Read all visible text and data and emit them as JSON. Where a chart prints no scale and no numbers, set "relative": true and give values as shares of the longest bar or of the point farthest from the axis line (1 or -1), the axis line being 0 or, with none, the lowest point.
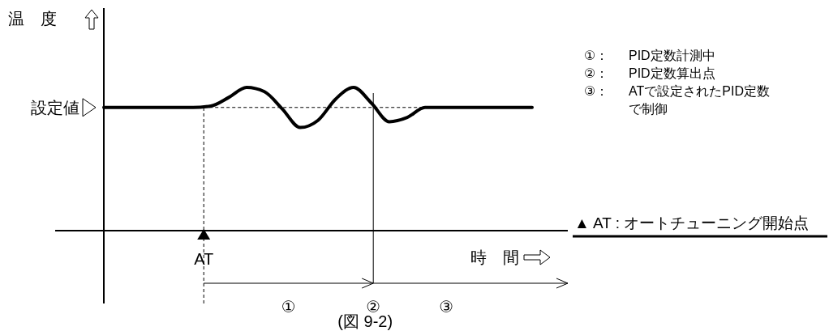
{
  "chart_data": {
    "type": "line",
    "relative": true,
    "ylabel": "温　度",
    "xlabel": "時　間",
    "categories": [
      null,
      null,
      null,
      null,
      null,
      null,
      null,
      null,
      null,
      null,
      null,
      null,
      null,
      null,
      null,
      null,
      null,
      null,
      null,
      null,
      null,
      null,
      null,
      null,
      null
    ],
    "series": [
      {
        "color": "#000000",
        "values": [
          0.86,
          0.86,
          0.86,
          0.86,
          0.86,
          0.86,
          0.87,
          0.93,
          1.0,
          0.97,
          0.85,
          0.72,
          0.77,
          0.92,
          1.0,
          0.89,
          0.76,
          0.79,
          0.86,
          0.86,
          0.86,
          0.86,
          0.86,
          0.86,
          0.86
        ]
      }
    ],
    "ref_lines": [
      {
        "axis": "y",
        "value": 0.86,
        "label": "設定値",
        "line_style": "dashed",
        "color": "#000000"
      }
    ],
    "annotations": [
      "AT",
      "①",
      "②",
      "③",
      "(図 9-2)",
      "①： PID定数計測中",
      "②： PID定数算出点",
      "③： ATで設定されたPID定数で制御",
      "▲ AT : オートチューニング開始点"
    ],
    "marker": "none",
    "line_style": "solid"
  }
}
